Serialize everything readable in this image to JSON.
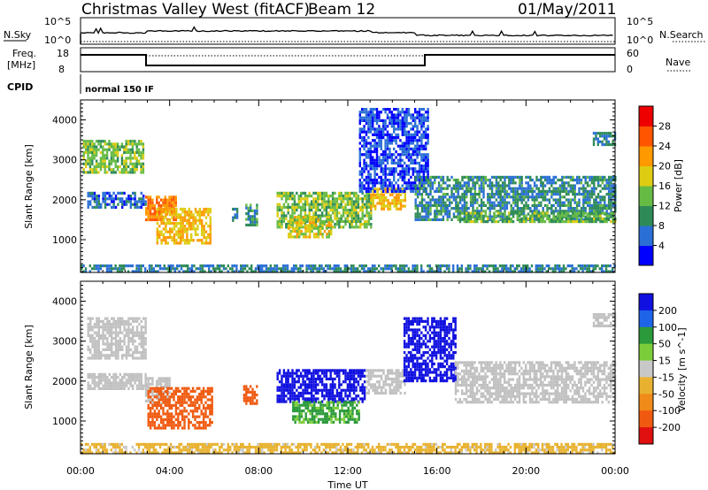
{
  "header": {
    "title": "Christmas Valley West (fitACF)",
    "beam": "Beam 12",
    "date": "01/May/2011"
  },
  "strip_labels": {
    "nsky": "N.Sky",
    "nsearch": "N.Search",
    "freq_line1": "Freq.",
    "freq_line2": "[MHz]",
    "nave": "Nave",
    "cpid": "CPID",
    "cpid_value": "normal 150 IF",
    "noise_left_ticks": [
      "10^5",
      "10^0"
    ],
    "noise_right_ticks": [
      "10^5",
      "10^0"
    ],
    "freq_left_ticks": [
      "18",
      "8"
    ],
    "nave_right_ticks": [
      "60",
      "0"
    ]
  },
  "colors": {
    "power_scale": [
      "#0000ff",
      "#2a6fd6",
      "#2e8b57",
      "#66bb44",
      "#ddcc11",
      "#ff9900",
      "#ff5500",
      "#ee0000"
    ],
    "velocity_scale": [
      "#1010e0",
      "#1e64e8",
      "#2a9a3a",
      "#7ccd3a",
      "#c8c8c8",
      "#e8b230",
      "#f08a18",
      "#f05a10",
      "#e01010"
    ],
    "ground_scatter": "#c0c0c0"
  },
  "chart_data": [
    {
      "type": "heatmap",
      "panel": "power",
      "ylabel": "Slant Range [km]",
      "xlabel": "",
      "x_range_hours": [
        0,
        24
      ],
      "ylim": [
        180,
        4500
      ],
      "y_ticks": [
        1000,
        2000,
        3000,
        4000
      ],
      "colorbar": {
        "label": "Power [dB]",
        "ticks": [
          4,
          8,
          12,
          16,
          20,
          24,
          28
        ],
        "range": [
          0,
          32
        ]
      },
      "regions": [
        {
          "t0": 0.1,
          "t1": 2.8,
          "r0": 2700,
          "r1": 3500,
          "value": 14
        },
        {
          "t0": 0.3,
          "t1": 2.9,
          "r0": 1800,
          "r1": 2200,
          "value": 6
        },
        {
          "t0": 2.9,
          "t1": 4.3,
          "r0": 1500,
          "r1": 2100,
          "value": 24
        },
        {
          "t0": 3.4,
          "t1": 5.8,
          "r0": 900,
          "r1": 1800,
          "value": 20
        },
        {
          "t0": 6.8,
          "t1": 7.0,
          "r0": 1500,
          "r1": 1800,
          "value": 8
        },
        {
          "t0": 7.4,
          "t1": 7.9,
          "r0": 1400,
          "r1": 1900,
          "value": 10
        },
        {
          "t0": 8.8,
          "t1": 13.0,
          "r0": 1300,
          "r1": 2200,
          "value": 14
        },
        {
          "t0": 9.3,
          "t1": 11.3,
          "r0": 1050,
          "r1": 1600,
          "value": 18
        },
        {
          "t0": 13.0,
          "t1": 14.6,
          "r0": 1800,
          "r1": 2300,
          "value": 20
        },
        {
          "t0": 12.5,
          "t1": 15.6,
          "r0": 2200,
          "r1": 4300,
          "value": 4
        },
        {
          "t0": 15.0,
          "t1": 24.0,
          "r0": 1500,
          "r1": 2600,
          "value": 9
        },
        {
          "t0": 17.0,
          "t1": 24.0,
          "r0": 1450,
          "r1": 1700,
          "value": 13
        },
        {
          "t0": 23.0,
          "t1": 24.0,
          "r0": 3400,
          "r1": 3700,
          "value": 8
        },
        {
          "t0": 0.0,
          "t1": 24.0,
          "r0": 180,
          "r1": 380,
          "value": 8
        }
      ]
    },
    {
      "type": "heatmap",
      "panel": "velocity",
      "ylabel": "Slant Range [km]",
      "xlabel": "Time UT",
      "x_range_hours": [
        0,
        24
      ],
      "ylim": [
        180,
        4500
      ],
      "y_ticks": [
        1000,
        2000,
        3000,
        4000
      ],
      "x_ticks": [
        "00:00",
        "04:00",
        "08:00",
        "12:00",
        "16:00",
        "20:00",
        "00:00"
      ],
      "colorbar": {
        "label": "Velocity [m s^-1]",
        "ticks": [
          200,
          100,
          50,
          15,
          -15,
          -50,
          -100,
          -200
        ],
        "range": [
          -250,
          250
        ]
      },
      "regions": [
        {
          "t0": 0.3,
          "t1": 2.9,
          "r0": 2600,
          "r1": 3600,
          "value": 0,
          "ground": true
        },
        {
          "t0": 0.3,
          "t1": 2.9,
          "r0": 1800,
          "r1": 2200,
          "value": 0,
          "ground": true
        },
        {
          "t0": 2.9,
          "t1": 4.0,
          "r0": 1400,
          "r1": 2100,
          "value": 0,
          "ground": true
        },
        {
          "t0": 3.0,
          "t1": 5.9,
          "r0": 800,
          "r1": 1850,
          "value": -150
        },
        {
          "t0": 7.3,
          "t1": 7.9,
          "r0": 1450,
          "r1": 1900,
          "value": -120
        },
        {
          "t0": 8.8,
          "t1": 12.8,
          "r0": 1500,
          "r1": 2300,
          "value": 180
        },
        {
          "t0": 9.5,
          "t1": 12.5,
          "r0": 1000,
          "r1": 1500,
          "value": 40
        },
        {
          "t0": 12.8,
          "t1": 14.6,
          "r0": 1700,
          "r1": 2300,
          "value": 0,
          "ground": true
        },
        {
          "t0": 14.5,
          "t1": 16.8,
          "r0": 2000,
          "r1": 3600,
          "value": 190
        },
        {
          "t0": 16.8,
          "t1": 24.0,
          "r0": 1450,
          "r1": 2500,
          "value": 0,
          "ground": true
        },
        {
          "t0": 23.0,
          "t1": 24.0,
          "r0": 3400,
          "r1": 3700,
          "value": 0,
          "ground": true
        },
        {
          "t0": 0.0,
          "t1": 24.0,
          "r0": 180,
          "r1": 450,
          "value": -30
        }
      ]
    }
  ]
}
